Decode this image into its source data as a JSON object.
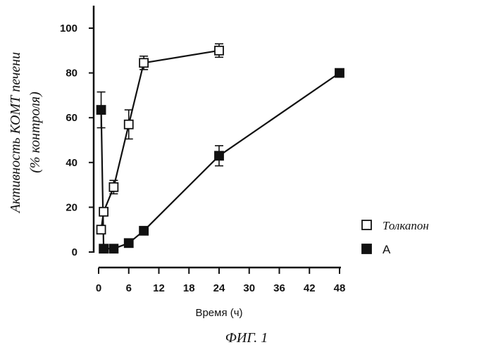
{
  "chart_data": {
    "type": "scatter",
    "x": [
      0,
      6,
      12,
      18,
      24,
      30,
      36,
      42,
      48
    ],
    "xlabel": "Время (ч)",
    "ylabel_line1": "Активность КОМТ печени",
    "ylabel_line2": "(% контроля)",
    "xlim": [
      0,
      48
    ],
    "ylim": [
      0,
      100
    ],
    "xticks": [
      0,
      6,
      12,
      18,
      24,
      30,
      36,
      42,
      48
    ],
    "yticks": [
      0,
      20,
      40,
      60,
      80,
      100
    ],
    "grid": false,
    "legend_position": "bottom-right",
    "caption": "ФИГ. 1",
    "series": [
      {
        "name": "Толкапон",
        "marker": "open-square",
        "color": "#111111",
        "points": [
          {
            "x": 0.5,
            "y": 10,
            "err": 1.5
          },
          {
            "x": 1,
            "y": 18,
            "err": 1.5
          },
          {
            "x": 3,
            "y": 29,
            "err": 3
          },
          {
            "x": 6,
            "y": 57,
            "err": 6.5
          },
          {
            "x": 9,
            "y": 84.5,
            "err": 3
          },
          {
            "x": 24,
            "y": 90,
            "err": 3
          }
        ]
      },
      {
        "name": "А",
        "marker": "filled-square",
        "color": "#111111",
        "points": [
          {
            "x": 0.5,
            "y": 63.5,
            "err": 8
          },
          {
            "x": 1,
            "y": 1.5,
            "err": 0
          },
          {
            "x": 3,
            "y": 1.5,
            "err": 0
          },
          {
            "x": 6,
            "y": 4,
            "err": 0.5
          },
          {
            "x": 9,
            "y": 9.5,
            "err": 0.5
          },
          {
            "x": 24,
            "y": 43,
            "err": 4.5
          },
          {
            "x": 48,
            "y": 80,
            "err": 0
          }
        ]
      }
    ]
  }
}
